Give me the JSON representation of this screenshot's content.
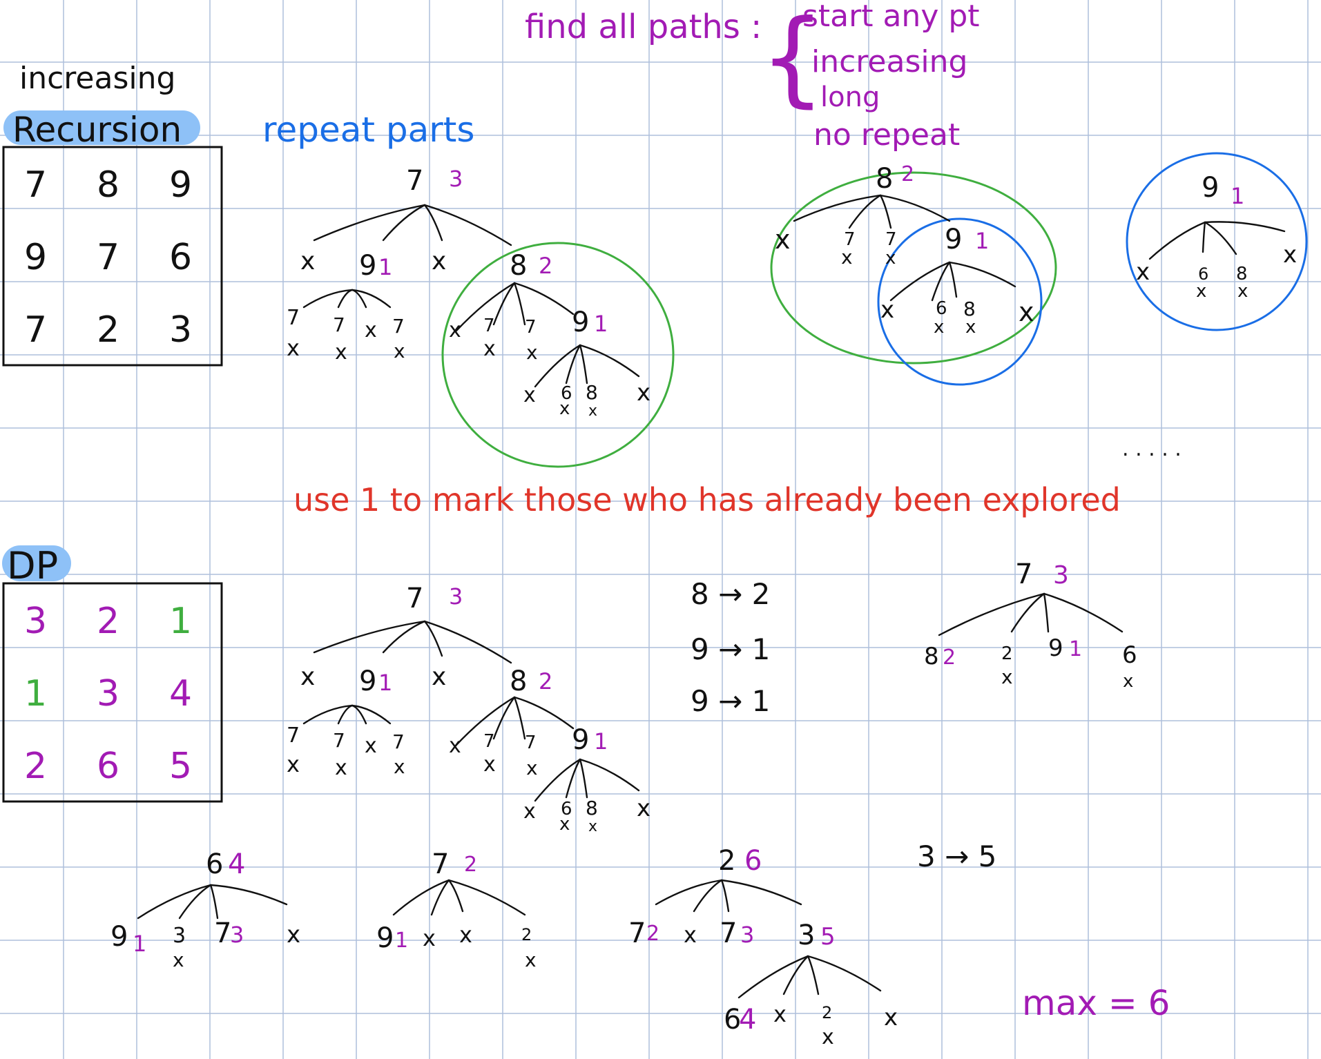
{
  "colors": {
    "grid": "#aebfdc",
    "ink": "#111111",
    "purple": "#a21bb4",
    "blue": "#1a6ee6",
    "green": "#3fae3f",
    "red": "#e0352a",
    "highlight": "#8ec1f7"
  },
  "headings": {
    "increasing": "increasing",
    "recursion": "Recursion",
    "dp": "DP",
    "repeat_parts": "repeat parts"
  },
  "find_all_paths": {
    "lead": "find all paths :",
    "brace": "{",
    "conditions": [
      "start any pt",
      "increasing",
      "long",
      "no repeat"
    ]
  },
  "recursion_grid": [
    [
      "7",
      "8",
      "9"
    ],
    [
      "9",
      "7",
      "6"
    ],
    [
      "7",
      "2",
      "3"
    ]
  ],
  "dp_grid": [
    [
      "3",
      "2",
      "1"
    ],
    [
      "1",
      "3",
      "4"
    ],
    [
      "2",
      "6",
      "5"
    ]
  ],
  "red_note": "use 1 to mark those who has already been explored",
  "ellipsis": ". . . . .",
  "memo": [
    "8 → 2",
    "9 → 1",
    "9 → 1"
  ],
  "memo_35": "3 → 5",
  "max": "max = 6",
  "marks": {
    "x": "x",
    "seven": "7",
    "six": "6",
    "eight": "8",
    "two": "2"
  },
  "tree_labels": {
    "r7": "7",
    "r7v": "3",
    "r9": "9",
    "r9v": "1",
    "r8": "8",
    "r8v": "2",
    "r89": "9",
    "r89v": "1",
    "t8": "8",
    "t8v": "2",
    "t89": "9",
    "t89v": "1",
    "t9": "9",
    "t9v": "1",
    "d7": "7",
    "d7v": "3",
    "d9": "9",
    "d9v": "1",
    "d8": "8",
    "d8v": "2",
    "d89": "9",
    "d89v": "1",
    "s7": "7",
    "s7v": "3",
    "s8": "8",
    "s8v": "2",
    "s9": "9",
    "s9v": "1",
    "s6": "6",
    "b6": "6",
    "b6v": "4",
    "b69": "9",
    "b69v": "1",
    "b63": "3",
    "b67": "7",
    "b67v": "3",
    "b7": "7",
    "b7v": "2",
    "b79": "9",
    "b79v": "1",
    "b2": "2",
    "b2v": "6",
    "b27": "7",
    "b27v": "2",
    "b273": "7",
    "b273v": "3",
    "b23": "3",
    "b23v": "5",
    "b236": "6",
    "b236v": "4"
  }
}
